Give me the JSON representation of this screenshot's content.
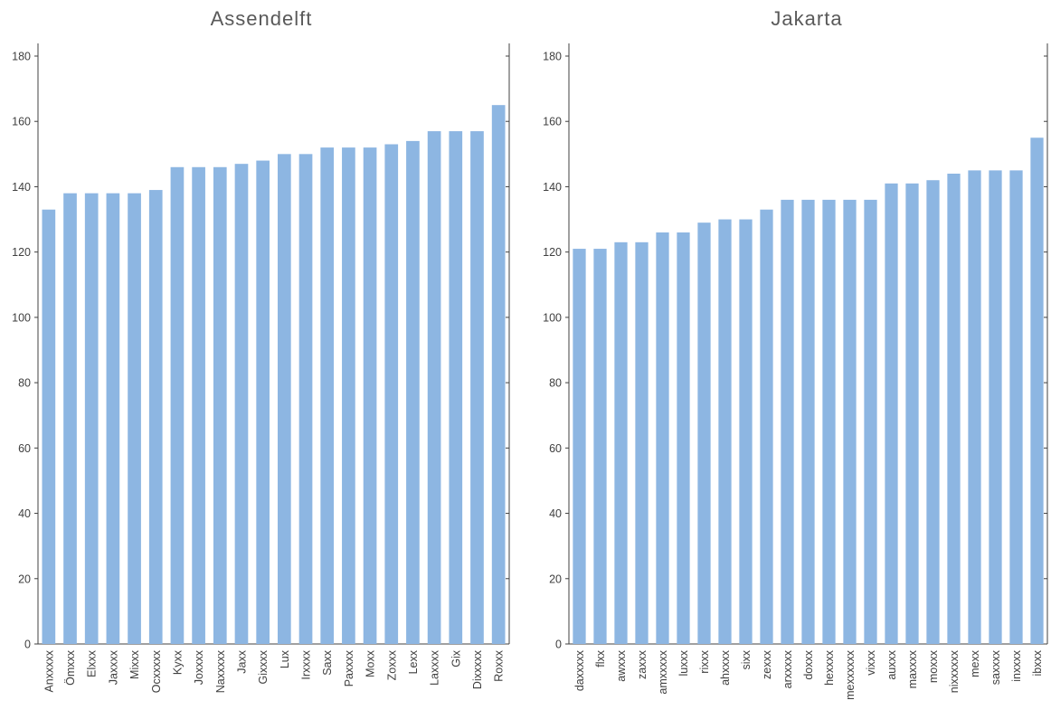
{
  "chart_data": [
    {
      "type": "bar",
      "title": "Assendelft",
      "categories": [
        "Anxxxxx",
        "Ömxxx",
        "Elxxx",
        "Jaxxxx",
        "Mixxx",
        "Ocxxxxx",
        "Kyxx",
        "Joxxxx",
        "Naxxxxx",
        "Jaxx",
        "Gixxxx",
        "Lux",
        "Irxxxx",
        "Saxx",
        "Paxxxx",
        "Moxx",
        "Zoxxx",
        "Lexx",
        "Laxxxx",
        "Gix",
        "Dixxxxx",
        "Roxxx"
      ],
      "values": [
        133,
        138,
        138,
        138,
        138,
        139,
        146,
        146,
        146,
        147,
        148,
        150,
        150,
        152,
        152,
        152,
        153,
        154,
        157,
        157,
        157,
        165
      ],
      "ylim": [
        0,
        180
      ],
      "yticks": [
        0,
        20,
        40,
        60,
        80,
        100,
        120,
        140,
        160,
        180
      ],
      "xlabel": "",
      "ylabel": "",
      "color": "#8db6e2",
      "grid": false,
      "legend": "none"
    },
    {
      "type": "bar",
      "title": "Jakarta",
      "categories": [
        "daxxxxx",
        "flxx",
        "awxxx",
        "zaxxx",
        "amxxxxx",
        "luxxx",
        "rixxx",
        "ahxxxx",
        "sixx",
        "zexxx",
        "arxxxxx",
        "doxxx",
        "hexxxx",
        "mexxxxxx",
        "vixxx",
        "auxxx",
        "maxxxx",
        "moxxx",
        "nixxxxxx",
        "mexx",
        "saxxxx",
        "inxxxx",
        "ibxxx"
      ],
      "values": [
        121,
        121,
        123,
        123,
        126,
        126,
        129,
        130,
        130,
        133,
        136,
        136,
        136,
        136,
        136,
        141,
        141,
        142,
        144,
        145,
        145,
        145,
        155
      ],
      "ylim": [
        0,
        180
      ],
      "yticks": [
        0,
        20,
        40,
        60,
        80,
        100,
        120,
        140,
        160,
        180
      ],
      "xlabel": "",
      "ylabel": "",
      "color": "#8db6e2",
      "grid": false,
      "legend": "none"
    }
  ]
}
